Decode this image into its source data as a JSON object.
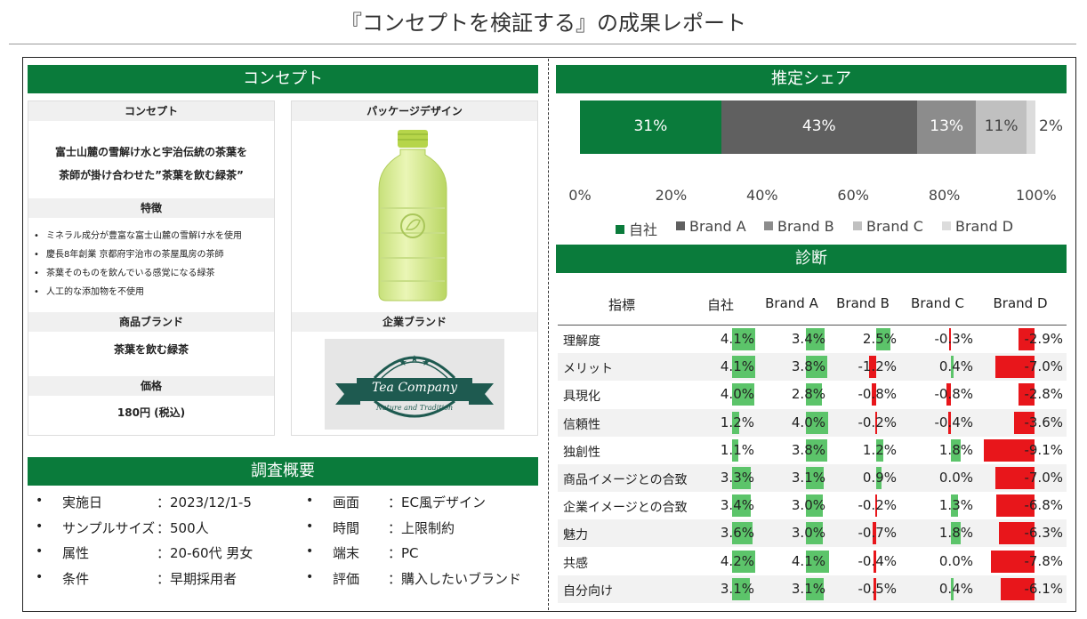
{
  "title": "『コンセプトを検証する』の成果レポート",
  "concept_section": {
    "header": "コンセプト",
    "concept_card": {
      "head": "コンセプト",
      "lines": [
        "富士山麓の雪解け水と宇治伝統の茶葉を",
        "茶師が掛け合わせた”茶葉を飲む緑茶”"
      ],
      "features_head": "特徴",
      "features": [
        "ミネラル成分が豊富な富士山麓の雪解け水を使用",
        "慶長8年創業 京都府宇治市の茶屋風房の茶師",
        "茶葉そのものを飲んでいる感覚になる緑茶",
        "人工的な添加物を不使用"
      ],
      "brand_head": "商品ブランド",
      "brand": "茶葉を飲む緑茶",
      "price_head": "価格",
      "price": "180円 (税込)"
    },
    "package_card": {
      "head": "パッケージデザイン",
      "corp_head": "企業ブランド",
      "logo_name": "Tea Company",
      "logo_tagline": "Nature and Tradition"
    }
  },
  "survey": {
    "header": "調査概要",
    "left": [
      {
        "label": "実施日",
        "value": "：2023/12/1-5"
      },
      {
        "label": "サンプルサイズ",
        "value": "：500人"
      },
      {
        "label": "属性",
        "value": "：20-60代 男女"
      },
      {
        "label": "条件",
        "value": "：早期採用者"
      }
    ],
    "right": [
      {
        "label": "画面",
        "value": "：EC風デザイン"
      },
      {
        "label": "時間",
        "value": "：上限制約"
      },
      {
        "label": "端末",
        "value": "：PC"
      },
      {
        "label": "評価",
        "value": "：購入したいブランド"
      }
    ]
  },
  "share": {
    "header": "推定シェア",
    "ticks": [
      "0%",
      "20%",
      "40%",
      "60%",
      "80%",
      "100%"
    ]
  },
  "chart_data": {
    "type": "bar",
    "orientation": "horizontal-stacked",
    "series": [
      {
        "name": "自社",
        "value": 31,
        "label": "31%",
        "color": "#0a7b3b"
      },
      {
        "name": "Brand A",
        "value": 43,
        "label": "43%",
        "color": "#606060"
      },
      {
        "name": "Brand B",
        "value": 13,
        "label": "13%",
        "color": "#8c8c8c"
      },
      {
        "name": "Brand C",
        "value": 11,
        "label": "11%",
        "color": "#c0c0c0"
      },
      {
        "name": "Brand D",
        "value": 2,
        "label": "2%",
        "color": "#dcdcdc"
      }
    ],
    "xlim": [
      0,
      100
    ],
    "legend": "bottom"
  },
  "diagnosis": {
    "header": "診断",
    "columns": [
      "指標",
      "自社",
      "Brand A",
      "Brand B",
      "Brand C",
      "Brand D"
    ],
    "rows": [
      {
        "label": "理解度",
        "values": [
          4.1,
          3.4,
          2.5,
          -0.3,
          -2.9
        ],
        "text": [
          "4.1%",
          "3.4%",
          "2.5%",
          "-0.3%",
          "-2.9%"
        ]
      },
      {
        "label": "メリット",
        "values": [
          4.1,
          3.8,
          -1.2,
          0.4,
          -7.0
        ],
        "text": [
          "4.1%",
          "3.8%",
          "-1.2%",
          "0.4%",
          "-7.0%"
        ]
      },
      {
        "label": "具現化",
        "values": [
          4.0,
          2.8,
          -0.8,
          -0.8,
          -2.8
        ],
        "text": [
          "4.0%",
          "2.8%",
          "-0.8%",
          "-0.8%",
          "-2.8%"
        ]
      },
      {
        "label": "信頼性",
        "values": [
          1.2,
          4.0,
          -0.2,
          -0.4,
          -3.6
        ],
        "text": [
          "1.2%",
          "4.0%",
          "-0.2%",
          "-0.4%",
          "-3.6%"
        ]
      },
      {
        "label": "独創性",
        "values": [
          1.1,
          3.8,
          1.2,
          1.8,
          -9.1
        ],
        "text": [
          "1.1%",
          "3.8%",
          "1.2%",
          "1.8%",
          "-9.1%"
        ]
      },
      {
        "label": "商品イメージとの合致",
        "values": [
          3.3,
          3.1,
          0.9,
          0.0,
          -7.0
        ],
        "text": [
          "3.3%",
          "3.1%",
          "0.9%",
          "0.0%",
          "-7.0%"
        ]
      },
      {
        "label": "企業イメージとの合致",
        "values": [
          3.4,
          3.0,
          -0.2,
          1.3,
          -6.8
        ],
        "text": [
          "3.4%",
          "3.0%",
          "-0.2%",
          "1.3%",
          "-6.8%"
        ]
      },
      {
        "label": "魅力",
        "values": [
          3.6,
          3.0,
          -0.7,
          1.8,
          -6.3
        ],
        "text": [
          "3.6%",
          "3.0%",
          "-0.7%",
          "1.8%",
          "-6.3%"
        ]
      },
      {
        "label": "共感",
        "values": [
          4.2,
          4.1,
          -0.4,
          0.0,
          -7.8
        ],
        "text": [
          "4.2%",
          "4.1%",
          "-0.4%",
          "0.0%",
          "-7.8%"
        ]
      },
      {
        "label": "自分向け",
        "values": [
          3.1,
          3.1,
          -0.5,
          0.4,
          -6.1
        ],
        "text": [
          "3.1%",
          "3.1%",
          "-0.5%",
          "0.4%",
          "-6.1%"
        ]
      }
    ],
    "positive_color": "#5cc46a",
    "negative_color": "#e8161b"
  }
}
